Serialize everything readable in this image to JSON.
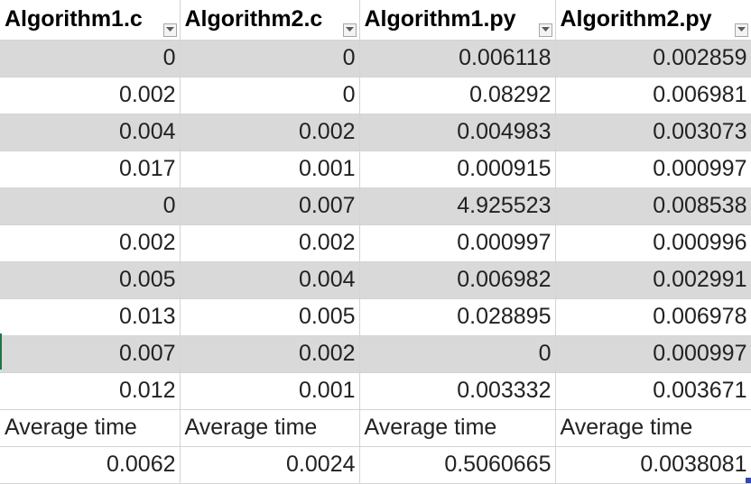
{
  "table": {
    "headers": [
      "Algorithm1.c",
      "Algorithm2.c",
      "Algorithm1.py",
      "Algorithm2.py"
    ],
    "rows": [
      [
        "0",
        "0",
        "0.006118",
        "0.002859"
      ],
      [
        "0.002",
        "0",
        "0.08292",
        "0.006981"
      ],
      [
        "0.004",
        "0.002",
        "0.004983",
        "0.003073"
      ],
      [
        "0.017",
        "0.001",
        "0.000915",
        "0.000997"
      ],
      [
        "0",
        "0.007",
        "4.925523",
        "0.008538"
      ],
      [
        "0.002",
        "0.002",
        "0.000997",
        "0.000996"
      ],
      [
        "0.005",
        "0.004",
        "0.006982",
        "0.002991"
      ],
      [
        "0.013",
        "0.005",
        "0.028895",
        "0.006978"
      ],
      [
        "0.007",
        "0.002",
        "0",
        "0.000997"
      ],
      [
        "0.012",
        "0.001",
        "0.003332",
        "0.003671"
      ]
    ],
    "average_labels": [
      "Average time",
      "Average time",
      "Average time",
      "Average time"
    ],
    "average_values": [
      "0.0062",
      "0.0024",
      "0.5060665",
      "0.0038081"
    ]
  },
  "icons": {
    "filter": "filter-dropdown-icon"
  },
  "colors": {
    "band": "#d9d9d9",
    "grid": "#d4d4d4",
    "selection_handle": "#2f4bb0"
  }
}
